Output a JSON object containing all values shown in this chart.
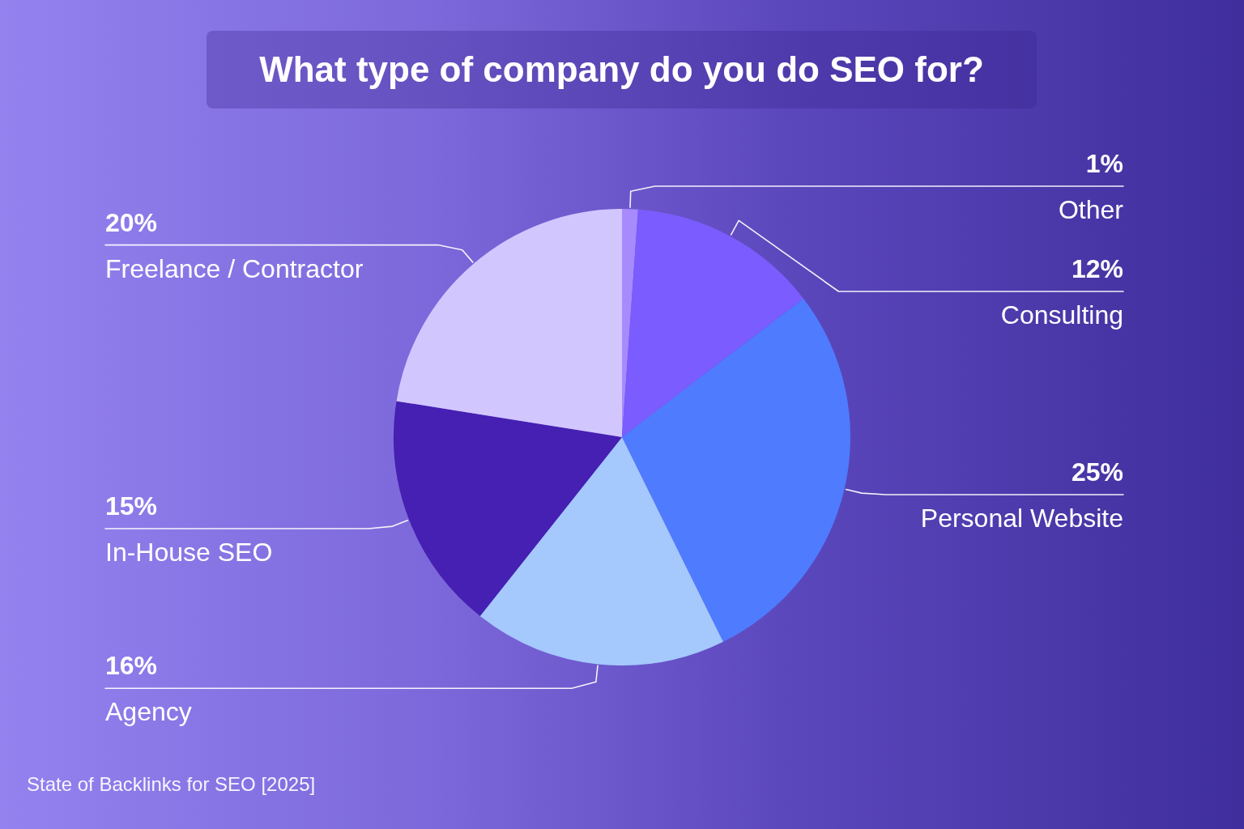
{
  "chart_data": {
    "type": "pie",
    "title": "What type of company do you do SEO for?",
    "categories": [
      "Other",
      "Consulting",
      "Personal Website",
      "Agency",
      "In-House SEO",
      "Freelance / Contractor"
    ],
    "values": [
      1,
      12,
      25,
      16,
      15,
      20
    ],
    "value_labels": [
      "1%",
      "12%",
      "25%",
      "16%",
      "15%",
      "20%"
    ],
    "colors": [
      "#a78bfd",
      "#7b5cff",
      "#4f7bff",
      "#a5c8fd",
      "#4520b2",
      "#d2c6ff"
    ],
    "legend": false,
    "annotations": [
      "State of Backlinks for SEO [2025]"
    ]
  }
}
